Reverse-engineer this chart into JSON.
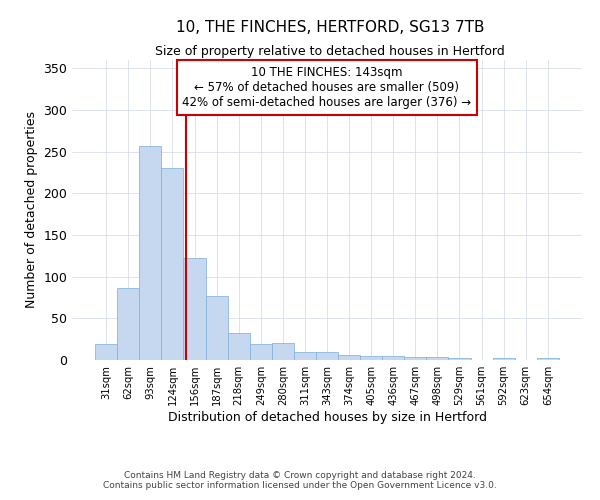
{
  "title1": "10, THE FINCHES, HERTFORD, SG13 7TB",
  "title2": "Size of property relative to detached houses in Hertford",
  "xlabel": "Distribution of detached houses by size in Hertford",
  "ylabel": "Number of detached properties",
  "bar_labels": [
    "31sqm",
    "62sqm",
    "93sqm",
    "124sqm",
    "156sqm",
    "187sqm",
    "218sqm",
    "249sqm",
    "280sqm",
    "311sqm",
    "343sqm",
    "374sqm",
    "405sqm",
    "436sqm",
    "467sqm",
    "498sqm",
    "529sqm",
    "561sqm",
    "592sqm",
    "623sqm",
    "654sqm"
  ],
  "bar_values": [
    19,
    87,
    257,
    230,
    122,
    77,
    33,
    19,
    20,
    10,
    10,
    6,
    5,
    5,
    4,
    4,
    3,
    0,
    3,
    0,
    3
  ],
  "bar_color": "#c5d8f0",
  "bar_edge_color": "#7aaed6",
  "grid_color": "#d0d8e8",
  "background_color": "#ffffff",
  "ylim": [
    0,
    360
  ],
  "yticks": [
    0,
    50,
    100,
    150,
    200,
    250,
    300,
    350
  ],
  "vline_color": "#cc0000",
  "annotation_text_line1": "10 THE FINCHES: 143sqm",
  "annotation_text_line2": "← 57% of detached houses are smaller (509)",
  "annotation_text_line3": "42% of semi-detached houses are larger (376) →",
  "footer_line1": "Contains HM Land Registry data © Crown copyright and database right 2024.",
  "footer_line2": "Contains public sector information licensed under the Open Government Licence v3.0."
}
